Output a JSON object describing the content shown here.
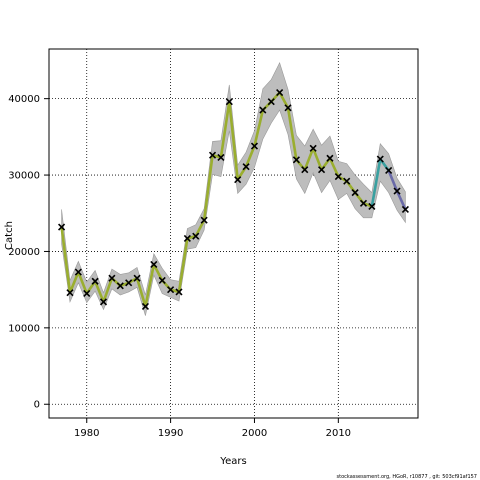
{
  "chart_data": {
    "type": "line",
    "xlabel": "Years",
    "ylabel": "Catch",
    "xlim": [
      1975.5,
      2019.5
    ],
    "ylim": [
      -1800,
      46500
    ],
    "x_ticks": [
      1980,
      1990,
      2000,
      2010
    ],
    "y_ticks": [
      0,
      10000,
      20000,
      30000,
      40000
    ],
    "grid": true,
    "grid_style": "dotted",
    "x": [
      1977,
      1978,
      1979,
      1980,
      1981,
      1982,
      1983,
      1984,
      1985,
      1986,
      1987,
      1988,
      1989,
      1990,
      1991,
      1992,
      1993,
      1994,
      1995,
      1996,
      1997,
      1998,
      1999,
      2000,
      2001,
      2002,
      2003,
      2004,
      2005,
      2006,
      2007,
      2008,
      2009,
      2010,
      2011,
      2012,
      2013,
      2014,
      2015,
      2016,
      2017,
      2018
    ],
    "series": [
      {
        "role": "estimate",
        "values": [
          23200,
          14600,
          17300,
          14500,
          16100,
          13400,
          16500,
          15500,
          15900,
          16500,
          12800,
          18300,
          16200,
          15000,
          14700,
          21700,
          22000,
          24100,
          32600,
          32300,
          39600,
          29400,
          31100,
          33800,
          38500,
          39600,
          40800,
          38800,
          32000,
          30700,
          33500,
          30700,
          32200,
          29800,
          29200,
          27700,
          26300,
          25900,
          32100,
          30600,
          27900,
          25500
        ],
        "ci_low": [
          21000,
          13400,
          15900,
          13300,
          14800,
          12400,
          15100,
          14300,
          14700,
          15300,
          11600,
          16900,
          14500,
          14000,
          13500,
          20300,
          20500,
          22800,
          30100,
          29800,
          35800,
          27600,
          28800,
          31000,
          34700,
          36800,
          38500,
          35300,
          29500,
          27600,
          30300,
          27700,
          29300,
          26800,
          27600,
          25600,
          24400,
          24400,
          29200,
          27700,
          25400,
          23800
        ],
        "ci_high": [
          25500,
          16200,
          18700,
          16000,
          17500,
          14600,
          17700,
          17000,
          17200,
          17900,
          14300,
          19700,
          17800,
          16300,
          16100,
          23000,
          23500,
          25600,
          34400,
          34500,
          41800,
          31300,
          33000,
          35800,
          41300,
          42500,
          44700,
          41200,
          35200,
          33800,
          36000,
          33900,
          35100,
          31800,
          31500,
          30000,
          28800,
          27700,
          34100,
          32800,
          29600,
          27800
        ],
        "segments": [
          {
            "from": 1977,
            "to": 2014,
            "color": "#9aae2f"
          },
          {
            "from": 2014,
            "to": 2016,
            "color": "#3aa0a0"
          },
          {
            "from": 2016,
            "to": 2018,
            "color": "#6a6aa8"
          }
        ]
      },
      {
        "role": "observed",
        "marker": "x",
        "values": [
          23200,
          14600,
          17300,
          14500,
          16100,
          13400,
          16500,
          15500,
          15900,
          16500,
          12800,
          18300,
          16200,
          15000,
          14700,
          21700,
          22000,
          24100,
          32600,
          32300,
          39600,
          29400,
          31100,
          33800,
          38500,
          39600,
          40800,
          38800,
          32000,
          30700,
          33500,
          30700,
          32200,
          29800,
          29200,
          27700,
          26300,
          25900,
          32100,
          30600,
          27900,
          25500
        ]
      }
    ],
    "colors": {
      "band": "#bdbdbd",
      "band_edge": "#9a9a9a",
      "marker": "#000000",
      "grid": "#000000",
      "axis": "#000000"
    }
  },
  "footer_text": "stockassessment.org, HGoR, r10877 , git: 503cf91af157"
}
